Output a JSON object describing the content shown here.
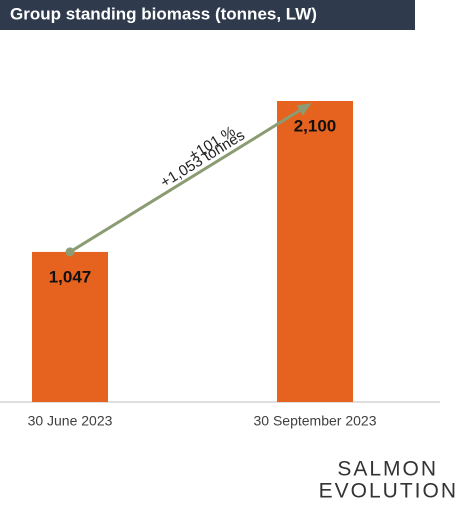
{
  "chart_data": {
    "type": "bar",
    "title": "Group standing biomass (tonnes, LW)",
    "categories": [
      "30 June 2023",
      "30 September 2023"
    ],
    "values": [
      1047,
      2100
    ],
    "value_labels": [
      "1,047",
      "2,100"
    ],
    "color": "#e5621f",
    "annotations": [
      "+101 %",
      "+1,053 tonnes"
    ],
    "annotation_color": "#8c9c72"
  },
  "logo": [
    "SALMON",
    "EVOLUTION"
  ]
}
